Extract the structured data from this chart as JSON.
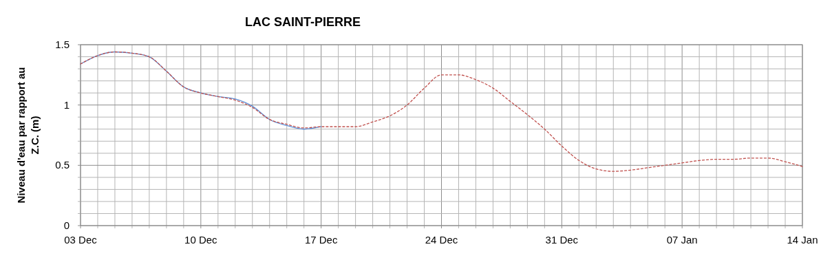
{
  "chart_data": {
    "type": "line",
    "title": "LAC SAINT-PIERRE",
    "ylabel": "Niveau d'eau par rapport au Z.C. (m)",
    "categories": [
      "03 Dec",
      null,
      null,
      null,
      null,
      null,
      null,
      "10 Dec",
      null,
      null,
      null,
      null,
      null,
      null,
      "17 Dec",
      null,
      null,
      null,
      null,
      null,
      null,
      "24 Dec",
      null,
      null,
      null,
      null,
      null,
      null,
      "31 Dec",
      null,
      null,
      null,
      null,
      null,
      null,
      "07 Jan",
      null,
      null,
      null,
      null,
      null,
      null,
      "14 Jan"
    ],
    "ylim": [
      0,
      1.5
    ],
    "yticks": [
      0,
      {
        "value": 0.1,
        "label": null
      },
      {
        "value": 0.2,
        "label": null
      },
      {
        "value": 0.3,
        "label": null
      },
      {
        "value": 0.4,
        "label": null
      },
      0.5,
      {
        "value": 0.6,
        "label": null
      },
      {
        "value": 0.7,
        "label": null
      },
      {
        "value": 0.8,
        "label": null
      },
      {
        "value": 0.9,
        "label": null
      },
      1,
      {
        "value": 1.1,
        "label": null
      },
      {
        "value": 1.2,
        "label": null
      },
      {
        "value": 1.3,
        "label": null
      },
      {
        "value": 1.4,
        "label": null
      },
      1.5
    ],
    "grid": true,
    "series": [
      {
        "color": "#c0504d",
        "line_style": "dashed",
        "values": [
          1.34,
          1.41,
          1.44,
          1.43,
          1.4,
          1.28,
          1.15,
          1.1,
          1.07,
          1.04,
          0.98,
          0.88,
          0.84,
          0.81,
          0.82,
          0.82,
          0.82,
          0.86,
          0.91,
          1.0,
          1.14,
          1.25,
          1.25,
          1.21,
          1.14,
          1.03,
          0.92,
          0.8,
          0.66,
          0.54,
          0.47,
          0.45,
          0.46,
          0.48,
          0.5,
          0.52,
          0.54,
          0.55,
          0.55,
          0.56,
          0.56,
          0.53,
          0.49
        ]
      },
      {
        "color": "#5b8ed6",
        "line_style": "solid",
        "values": [
          1.34,
          1.41,
          1.44,
          1.43,
          1.4,
          1.28,
          1.15,
          1.1,
          1.07,
          1.05,
          0.99,
          0.88,
          0.83,
          0.8,
          0.82,
          null,
          null,
          null,
          null,
          null,
          null,
          null,
          null,
          null,
          null,
          null,
          null,
          null,
          null,
          null,
          null,
          null,
          null,
          null,
          null,
          null,
          null,
          null,
          null,
          null,
          null,
          null,
          null
        ]
      }
    ]
  }
}
